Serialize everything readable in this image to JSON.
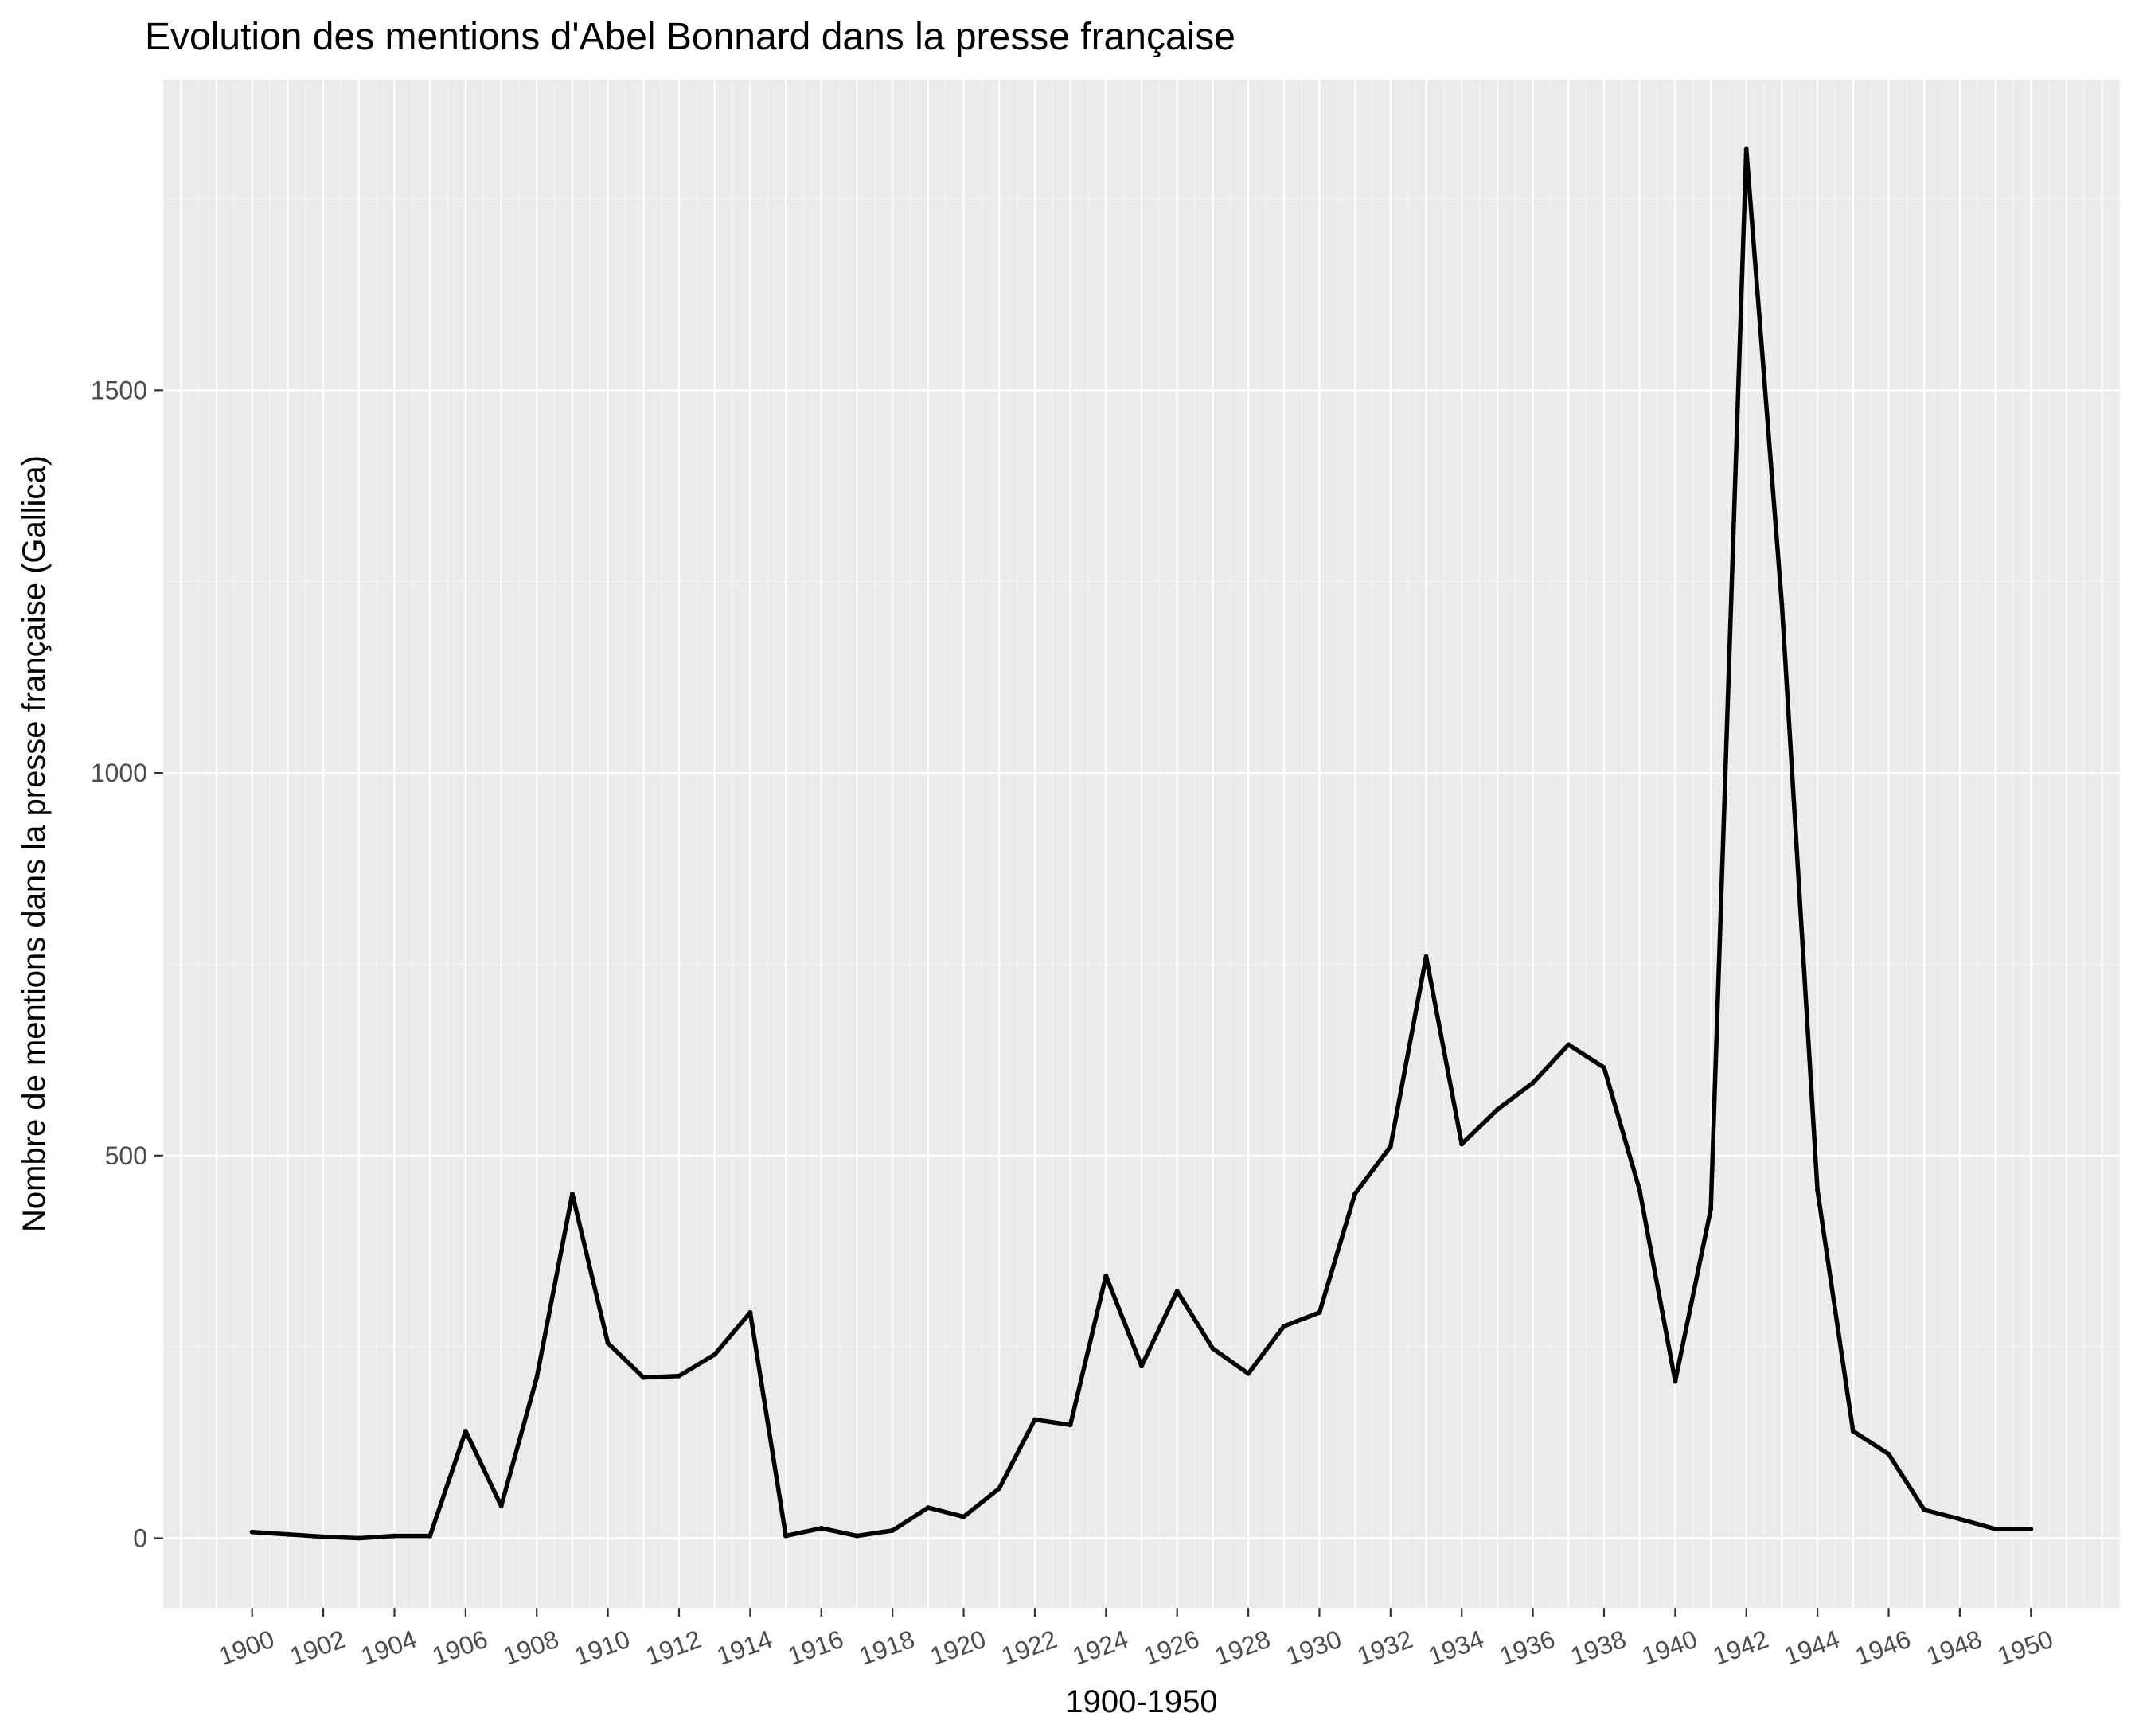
{
  "chart_data": {
    "type": "line",
    "title": "Evolution des mentions d'Abel Bonnard dans la presse française",
    "xlabel": "1900-1950",
    "ylabel": "Nombre de mentions dans la presse française (Gallica)",
    "x": [
      1900,
      1901,
      1902,
      1903,
      1904,
      1905,
      1906,
      1907,
      1908,
      1909,
      1910,
      1911,
      1912,
      1913,
      1914,
      1915,
      1916,
      1917,
      1918,
      1919,
      1920,
      1921,
      1922,
      1923,
      1924,
      1925,
      1926,
      1927,
      1928,
      1929,
      1930,
      1931,
      1932,
      1933,
      1934,
      1935,
      1936,
      1937,
      1938,
      1939,
      1940,
      1941,
      1942,
      1943,
      1944,
      1945,
      1946,
      1947,
      1948,
      1949,
      1950
    ],
    "series": [
      {
        "values": [
          8,
          5,
          2,
          0,
          3,
          3,
          140,
          42,
          210,
          450,
          255,
          210,
          212,
          240,
          295,
          3,
          13,
          3,
          10,
          40,
          28,
          65,
          155,
          148,
          343,
          225,
          323,
          248,
          215,
          277,
          295,
          450,
          512,
          760,
          515,
          560,
          595,
          645,
          615,
          455,
          205,
          430,
          1815,
          1220,
          455,
          140,
          110,
          37,
          25,
          12,
          12
        ]
      }
    ],
    "xticks": [
      "1900",
      "1902",
      "1904",
      "1906",
      "1908",
      "1910",
      "1912",
      "1914",
      "1916",
      "1918",
      "1920",
      "1922",
      "1924",
      "1926",
      "1928",
      "1930",
      "1932",
      "1934",
      "1936",
      "1938",
      "1940",
      "1942",
      "1944",
      "1946",
      "1948",
      "1950"
    ],
    "yticks": [
      0,
      500,
      1000,
      1500
    ],
    "xlim": [
      1897.5,
      1952.5
    ],
    "ylim": [
      -91,
      1906
    ],
    "grid": true,
    "legend": "none",
    "colors": {
      "panel_background": "#ebebeb",
      "grid_major": "#ffffff",
      "grid_minor": "#f5f5f5",
      "line": "#000000",
      "tick_text": "#4d4d4d",
      "tick_mark": "#333333"
    }
  }
}
